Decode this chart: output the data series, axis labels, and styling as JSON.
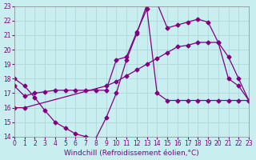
{
  "xlabel": "Windchill (Refroidissement éolien,°C)",
  "xlim": [
    0,
    23
  ],
  "ylim": [
    14,
    23
  ],
  "yticks": [
    14,
    15,
    16,
    17,
    18,
    19,
    20,
    21,
    22,
    23
  ],
  "xticks": [
    0,
    1,
    2,
    3,
    4,
    5,
    6,
    7,
    8,
    9,
    10,
    11,
    12,
    13,
    14,
    15,
    16,
    17,
    18,
    19,
    20,
    21,
    22,
    23
  ],
  "bg_color": "#c8eef0",
  "line_color": "#800080",
  "grid_color": "#b0d8dc",
  "line1_x": [
    0,
    1,
    2,
    3,
    4,
    5,
    6,
    7,
    8,
    9,
    10,
    11,
    12,
    13,
    14,
    15,
    16,
    17,
    18,
    19,
    20,
    21,
    22,
    23
  ],
  "line1_y": [
    18.0,
    17.5,
    16.7,
    15.8,
    15.0,
    14.6,
    14.2,
    14.0,
    13.9,
    15.3,
    17.0,
    19.3,
    21.1,
    23.1,
    23.2,
    21.5,
    21.7,
    21.9,
    22.1,
    21.9,
    20.5,
    18.0,
    17.5,
    16.5
  ],
  "line2_x": [
    0,
    1,
    2,
    3,
    4,
    5,
    6,
    7,
    8,
    9,
    10,
    11,
    12,
    13,
    14,
    15,
    16,
    17,
    18,
    19,
    20,
    21,
    22,
    23
  ],
  "line2_y": [
    17.5,
    16.8,
    17.0,
    17.1,
    17.2,
    17.2,
    17.2,
    17.2,
    17.2,
    17.2,
    19.3,
    19.5,
    21.2,
    22.8,
    17.0,
    16.5,
    16.5,
    16.5,
    16.5,
    16.5,
    16.5,
    16.5,
    16.5,
    16.5
  ],
  "line3_x": [
    0,
    1,
    9,
    10,
    11,
    12,
    13,
    14,
    15,
    16,
    17,
    18,
    19,
    20,
    21,
    22,
    23
  ],
  "line3_y": [
    16.0,
    16.0,
    17.5,
    17.8,
    18.2,
    18.6,
    19.0,
    19.4,
    19.8,
    20.2,
    20.3,
    20.5,
    20.5,
    20.5,
    19.5,
    18.0,
    16.5
  ],
  "marker": "D",
  "markersize": 2.5,
  "linewidth": 0.9,
  "tick_fontsize": 5.5,
  "label_fontsize": 6.5
}
